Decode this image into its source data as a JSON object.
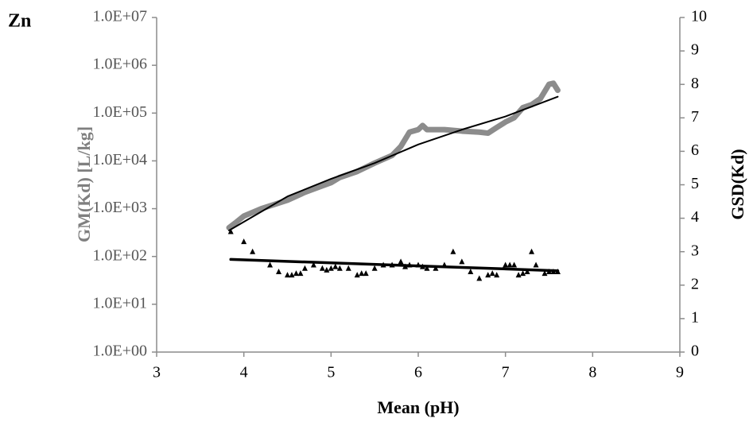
{
  "chart_data": {
    "type": "line",
    "title": "Zn",
    "xlabel": "Mean (pH)",
    "ylabel": "GM(Kd) [L/kg]",
    "y2label": "GSD(Kd)",
    "xlim": [
      3,
      9
    ],
    "xticks": [
      3,
      4,
      5,
      6,
      7,
      8,
      9
    ],
    "ylim": [
      1,
      10000000
    ],
    "ylog": true,
    "yticks": [
      {
        "value": 1,
        "label": "1.0E+00"
      },
      {
        "value": 10,
        "label": "1.0E+01"
      },
      {
        "value": 100,
        "label": "1.0E+02"
      },
      {
        "value": 1000,
        "label": "1.0E+03"
      },
      {
        "value": 10000,
        "label": "1.0E+04"
      },
      {
        "value": 100000,
        "label": "1.0E+05"
      },
      {
        "value": 1000000,
        "label": "1.0E+06"
      },
      {
        "value": 10000000,
        "label": "1.0E+07"
      }
    ],
    "y2lim": [
      0,
      10
    ],
    "y2ticks": [
      0,
      1,
      2,
      3,
      4,
      5,
      6,
      7,
      8,
      9,
      10
    ],
    "grid": false,
    "series": [
      {
        "style": "line",
        "color": "#8c8c8c",
        "width": 7,
        "x": [
          3.83,
          3.9,
          4.0,
          4.2,
          4.5,
          4.7,
          4.9,
          5.0,
          5.1,
          5.3,
          5.5,
          5.7,
          5.8,
          5.9,
          6.0,
          6.05,
          6.1,
          6.3,
          6.5,
          6.7,
          6.8,
          6.9,
          7.0,
          7.1,
          7.2,
          7.3,
          7.4,
          7.5,
          7.55,
          7.6
        ],
        "values": [
          400,
          500,
          700,
          1000,
          1500,
          2200,
          3000,
          3500,
          4500,
          6000,
          9000,
          13000,
          20000,
          40000,
          45000,
          55000,
          45000,
          45000,
          42000,
          40000,
          38000,
          50000,
          65000,
          80000,
          130000,
          150000,
          200000,
          400000,
          420000,
          300000
        ]
      },
      {
        "style": "line",
        "color": "#000000",
        "width": 2,
        "x": [
          3.83,
          4.5,
          5.0,
          5.5,
          6.0,
          6.5,
          7.0,
          7.6
        ],
        "values": [
          350,
          1800,
          4200,
          9000,
          22000,
          45000,
          85000,
          220000
        ]
      },
      {
        "style": "markers",
        "axis": "y2",
        "color": "#000000",
        "x": [
          3.85,
          4.0,
          4.1,
          4.3,
          4.4,
          4.5,
          4.55,
          4.6,
          4.65,
          4.7,
          4.8,
          4.9,
          4.95,
          5.0,
          5.05,
          5.1,
          5.2,
          5.3,
          5.35,
          5.4,
          5.5,
          5.6,
          5.7,
          5.8,
          5.85,
          5.9,
          6.0,
          6.05,
          6.1,
          6.2,
          6.3,
          6.4,
          6.5,
          6.6,
          6.7,
          6.8,
          6.85,
          6.9,
          7.0,
          7.05,
          7.1,
          7.15,
          7.2,
          7.25,
          7.3,
          7.35,
          7.45,
          7.5,
          7.55,
          7.6
        ],
        "values": [
          3.6,
          3.3,
          3.0,
          2.6,
          2.4,
          2.3,
          2.3,
          2.35,
          2.35,
          2.5,
          2.6,
          2.5,
          2.45,
          2.5,
          2.55,
          2.5,
          2.5,
          2.3,
          2.35,
          2.35,
          2.5,
          2.6,
          2.6,
          2.7,
          2.55,
          2.6,
          2.6,
          2.55,
          2.5,
          2.5,
          2.6,
          3.0,
          2.7,
          2.4,
          2.2,
          2.3,
          2.35,
          2.3,
          2.6,
          2.6,
          2.6,
          2.3,
          2.35,
          2.4,
          3.0,
          2.6,
          2.35,
          2.4,
          2.4,
          2.4
        ]
      },
      {
        "style": "line",
        "axis": "y2",
        "color": "#000000",
        "width": 3.5,
        "x": [
          3.85,
          7.6
        ],
        "values": [
          2.77,
          2.43
        ]
      }
    ]
  }
}
